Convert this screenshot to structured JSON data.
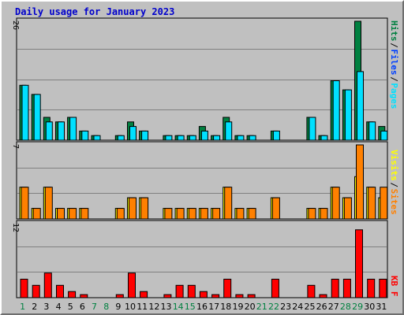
{
  "title": "Daily usage for January 2023",
  "colors": {
    "title": "#0000cc",
    "hits": "#008040",
    "files": "#0040ff",
    "pages": "#00e0ff",
    "visits": "#ffff00",
    "sites": "#ff8000",
    "kbytes": "#ff0000",
    "weekend_label": "#008040",
    "weekday_label": "#000000",
    "slash": "#000000"
  },
  "legend": {
    "top": [
      {
        "label": "Hits",
        "color": "#008040"
      },
      {
        "label": "Files",
        "color": "#0040ff"
      },
      {
        "label": "Pages",
        "color": "#00e0ff"
      }
    ],
    "middle": [
      {
        "label": "Visits",
        "color": "#ffff00"
      },
      {
        "label": "Sites",
        "color": "#ff8000"
      }
    ],
    "bottom": [
      {
        "label": "KB F",
        "color": "#ff0000"
      }
    ]
  },
  "chart_data": {
    "type": "bar",
    "title": "Daily usage for January 2023",
    "categories": [
      "1",
      "2",
      "3",
      "4",
      "5",
      "6",
      "7",
      "8",
      "9",
      "10",
      "11",
      "12",
      "13",
      "14",
      "15",
      "16",
      "17",
      "18",
      "19",
      "20",
      "21",
      "22",
      "23",
      "24",
      "25",
      "26",
      "27",
      "28",
      "29",
      "30",
      "31"
    ],
    "weekend_days": [
      "1",
      "7",
      "8",
      "14",
      "15",
      "21",
      "22",
      "28",
      "29"
    ],
    "panels": [
      {
        "name": "top",
        "ymax_label": "26",
        "ylim": [
          0,
          26
        ],
        "series": [
          {
            "name": "Hits",
            "values": [
              12,
              10,
              5,
              4,
              5,
              2,
              1,
              0,
              1,
              4,
              2,
              0,
              1,
              1,
              1,
              3,
              1,
              5,
              1,
              1,
              0,
              2,
              0,
              0,
              5,
              1,
              13,
              11,
              26,
              4,
              3
            ]
          },
          {
            "name": "Files",
            "values": [
              12,
              10,
              5,
              4,
              5,
              2,
              1,
              0,
              1,
              4,
              2,
              0,
              1,
              1,
              1,
              3,
              1,
              5,
              1,
              1,
              0,
              2,
              0,
              0,
              5,
              1,
              13,
              11,
              26,
              4,
              3
            ]
          },
          {
            "name": "Pages",
            "values": [
              12,
              10,
              4,
              4,
              5,
              2,
              1,
              0,
              1,
              3,
              2,
              0,
              1,
              1,
              1,
              2,
              1,
              4,
              1,
              1,
              0,
              2,
              0,
              0,
              5,
              1,
              13,
              11,
              15,
              4,
              2
            ]
          }
        ]
      },
      {
        "name": "middle",
        "ymax_label": "7",
        "ylim": [
          0,
          7
        ],
        "series": [
          {
            "name": "Visits",
            "values": [
              3,
              1,
              3,
              1,
              1,
              1,
              0,
              0,
              1,
              2,
              2,
              0,
              1,
              1,
              1,
              1,
              1,
              3,
              1,
              1,
              0,
              2,
              0,
              0,
              1,
              1,
              3,
              2,
              4,
              3,
              2
            ]
          },
          {
            "name": "Sites",
            "values": [
              3,
              1,
              3,
              1,
              1,
              1,
              0,
              0,
              1,
              2,
              2,
              0,
              1,
              1,
              1,
              1,
              1,
              3,
              1,
              1,
              0,
              2,
              0,
              0,
              1,
              1,
              3,
              2,
              7,
              3,
              3
            ]
          }
        ]
      },
      {
        "name": "bottom",
        "ymax_label": "12",
        "ylim": [
          0,
          12
        ],
        "series": [
          {
            "name": "KB F",
            "values": [
              3,
              2,
              4,
              2,
              1,
              0.5,
              0,
              0,
              0.5,
              4,
              1,
              0,
              0.5,
              2,
              2,
              1,
              0.5,
              3,
              0.5,
              0.5,
              0,
              3,
              0,
              0,
              2,
              0.5,
              3,
              3,
              11,
              3,
              3
            ]
          }
        ]
      }
    ]
  }
}
